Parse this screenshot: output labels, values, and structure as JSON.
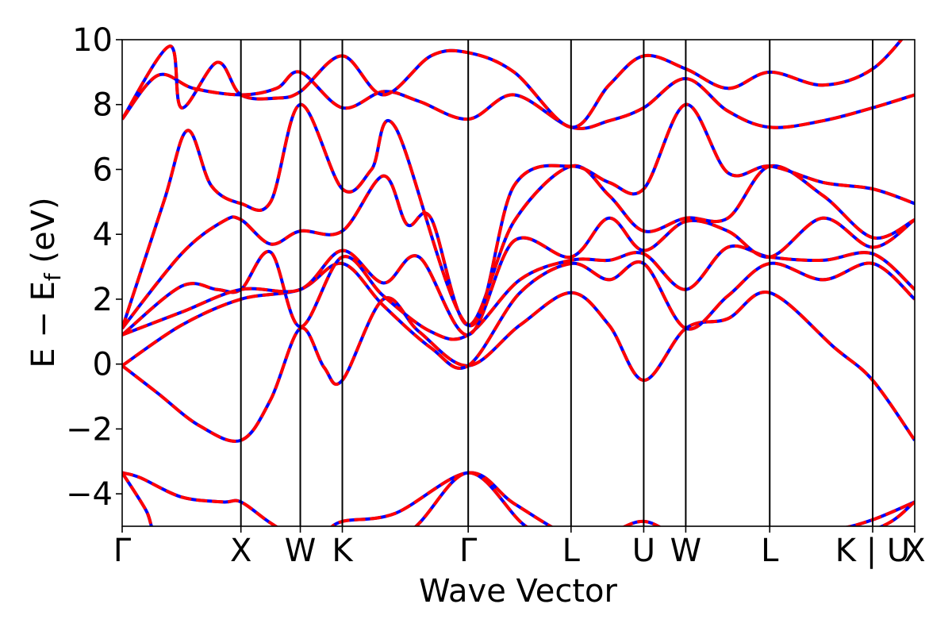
{
  "chart_data": {
    "type": "line",
    "title": "",
    "xlabel": "Wave Vector",
    "ylabel_parts": [
      "E − E",
      "f",
      " (eV)"
    ],
    "ylim": [
      -5,
      10
    ],
    "yticks": [
      "10",
      "8",
      "6",
      "4",
      "2",
      "0",
      "−2",
      "−4"
    ],
    "ytick_values": [
      10,
      8,
      6,
      4,
      2,
      0,
      -2,
      -4
    ],
    "kpath": [
      {
        "label": "Γ",
        "x": 0.0
      },
      {
        "label": "X",
        "x": 1.0
      },
      {
        "label": "W",
        "x": 1.5
      },
      {
        "label": "K",
        "x": 1.854
      },
      {
        "label": "Γ",
        "x": 2.914
      },
      {
        "label": "L",
        "x": 3.78
      },
      {
        "label": "U",
        "x": 4.392
      },
      {
        "label": "W",
        "x": 4.746
      },
      {
        "label": "L",
        "x": 5.453
      },
      {
        "label": "K | U",
        "x": 6.32
      },
      {
        "label": "X",
        "x": 6.674
      }
    ],
    "series_styles": [
      {
        "color": "#0000ff",
        "style": "solid"
      },
      {
        "color": "#ff0000",
        "style": "dashed"
      }
    ],
    "bands": [
      [
        [
          0,
          -3.35
        ],
        [
          0.15,
          -3.5
        ],
        [
          0.5,
          -4.1
        ],
        [
          0.85,
          -4.25
        ],
        [
          1.0,
          -4.25
        ],
        [
          1.25,
          -4.9
        ],
        [
          1.5,
          -5.4
        ],
        [
          1.7,
          -5.2
        ],
        [
          1.854,
          -4.85
        ],
        [
          2.3,
          -4.6
        ],
        [
          2.914,
          -3.35
        ],
        [
          3.3,
          -4.3
        ],
        [
          3.78,
          -5.3
        ],
        [
          4.1,
          -5.2
        ],
        [
          4.392,
          -4.85
        ],
        [
          4.746,
          -5.3
        ],
        [
          5.453,
          -5.3
        ],
        [
          6.0,
          -5.1
        ],
        [
          6.32,
          -4.8
        ],
        [
          6.674,
          -4.25
        ]
      ],
      [
        [
          0,
          -3.35
        ],
        [
          0.2,
          -4.5
        ],
        [
          0.3,
          -5.3
        ],
        [
          0.6,
          -5.4
        ],
        [
          1.0,
          -5.3
        ],
        [
          1.5,
          -5.5
        ],
        [
          1.854,
          -5.2
        ],
        [
          2.4,
          -5.2
        ],
        [
          2.914,
          -3.35
        ],
        [
          3.4,
          -5.0
        ],
        [
          3.78,
          -5.4
        ],
        [
          4.392,
          -5.1
        ],
        [
          4.746,
          -5.4
        ],
        [
          5.453,
          -5.4
        ],
        [
          6.32,
          -5.1
        ],
        [
          6.674,
          -4.25
        ]
      ],
      [
        [
          0,
          -0.05
        ],
        [
          0.3,
          -0.9
        ],
        [
          0.65,
          -1.9
        ],
        [
          1.0,
          -2.35
        ],
        [
          1.25,
          -1.1
        ],
        [
          1.5,
          1.1
        ],
        [
          1.7,
          -0.1
        ],
        [
          1.854,
          -0.5
        ],
        [
          2.2,
          2.0
        ],
        [
          2.5,
          1.0
        ],
        [
          2.914,
          -0.05
        ],
        [
          3.35,
          1.2
        ],
        [
          3.78,
          2.2
        ],
        [
          4.1,
          1.2
        ],
        [
          4.392,
          -0.5
        ],
        [
          4.746,
          1.1
        ],
        [
          5.1,
          1.4
        ],
        [
          5.453,
          2.2
        ],
        [
          6.0,
          0.5
        ],
        [
          6.32,
          -0.5
        ],
        [
          6.674,
          -2.35
        ]
      ],
      [
        [
          0,
          -0.05
        ],
        [
          0.5,
          1.2
        ],
        [
          1.0,
          2.0
        ],
        [
          1.5,
          2.3
        ],
        [
          1.854,
          3.1
        ],
        [
          2.2,
          1.8
        ],
        [
          2.6,
          0.5
        ],
        [
          2.914,
          -0.05
        ],
        [
          3.35,
          2.2
        ],
        [
          3.78,
          3.1
        ],
        [
          4.1,
          2.6
        ],
        [
          4.392,
          3.1
        ],
        [
          4.746,
          1.1
        ],
        [
          5.1,
          2.1
        ],
        [
          5.453,
          3.1
        ],
        [
          5.9,
          2.6
        ],
        [
          6.32,
          3.1
        ],
        [
          6.674,
          2.0
        ]
      ],
      [
        [
          0,
          0.9
        ],
        [
          0.5,
          2.4
        ],
        [
          0.8,
          2.3
        ],
        [
          1.0,
          2.3
        ],
        [
          1.25,
          3.45
        ],
        [
          1.5,
          1.15
        ],
        [
          1.854,
          3.3
        ],
        [
          2.2,
          2.1
        ],
        [
          2.6,
          1.0
        ],
        [
          2.914,
          0.9
        ],
        [
          3.35,
          2.6
        ],
        [
          3.78,
          3.2
        ],
        [
          4.1,
          3.2
        ],
        [
          4.392,
          3.4
        ],
        [
          4.746,
          2.3
        ],
        [
          5.1,
          3.6
        ],
        [
          5.453,
          3.3
        ],
        [
          5.9,
          3.2
        ],
        [
          6.32,
          3.4
        ],
        [
          6.674,
          2.3
        ]
      ],
      [
        [
          0,
          0.9
        ],
        [
          0.5,
          1.6
        ],
        [
          1.0,
          2.3
        ],
        [
          1.5,
          2.3
        ],
        [
          1.854,
          3.5
        ],
        [
          2.2,
          2.5
        ],
        [
          2.5,
          3.3
        ],
        [
          2.914,
          0.9
        ],
        [
          3.3,
          3.8
        ],
        [
          3.78,
          3.3
        ],
        [
          4.1,
          4.5
        ],
        [
          4.392,
          3.5
        ],
        [
          4.746,
          4.4
        ],
        [
          5.1,
          4.1
        ],
        [
          5.453,
          3.3
        ],
        [
          5.9,
          4.5
        ],
        [
          6.32,
          3.6
        ],
        [
          6.674,
          4.45
        ]
      ],
      [
        [
          0,
          1.1
        ],
        [
          0.5,
          3.4
        ],
        [
          0.85,
          4.4
        ],
        [
          1.0,
          4.45
        ],
        [
          1.25,
          3.7
        ],
        [
          1.5,
          4.1
        ],
        [
          1.854,
          4.1
        ],
        [
          2.2,
          5.8
        ],
        [
          2.4,
          4.3
        ],
        [
          2.6,
          4.5
        ],
        [
          2.914,
          1.2
        ],
        [
          3.3,
          4.4
        ],
        [
          3.78,
          6.1
        ],
        [
          4.1,
          5.2
        ],
        [
          4.392,
          4.1
        ],
        [
          4.746,
          4.5
        ],
        [
          5.1,
          4.5
        ],
        [
          5.453,
          6.1
        ],
        [
          5.9,
          5.2
        ],
        [
          6.32,
          3.9
        ],
        [
          6.674,
          4.45
        ]
      ],
      [
        [
          0,
          1.1
        ],
        [
          0.35,
          5.0
        ],
        [
          0.55,
          7.2
        ],
        [
          0.75,
          5.5
        ],
        [
          1.0,
          4.95
        ],
        [
          1.25,
          5.0
        ],
        [
          1.5,
          8.0
        ],
        [
          1.854,
          5.4
        ],
        [
          2.1,
          6.0
        ],
        [
          2.3,
          7.3
        ],
        [
          2.914,
          1.2
        ],
        [
          3.3,
          5.5
        ],
        [
          3.78,
          6.1
        ],
        [
          4.1,
          5.6
        ],
        [
          4.392,
          5.4
        ],
        [
          4.746,
          8.0
        ],
        [
          5.1,
          5.9
        ],
        [
          5.453,
          6.1
        ],
        [
          5.9,
          5.6
        ],
        [
          6.32,
          5.4
        ],
        [
          6.674,
          4.95
        ]
      ],
      [
        [
          0,
          7.55
        ],
        [
          0.3,
          8.9
        ],
        [
          0.6,
          8.5
        ],
        [
          1.0,
          8.3
        ],
        [
          1.3,
          8.5
        ],
        [
          1.5,
          9.0
        ],
        [
          1.854,
          7.9
        ],
        [
          2.2,
          8.4
        ],
        [
          2.5,
          8.1
        ],
        [
          2.914,
          7.55
        ],
        [
          3.3,
          8.3
        ],
        [
          3.78,
          7.3
        ],
        [
          4.1,
          7.5
        ],
        [
          4.392,
          7.9
        ],
        [
          4.746,
          8.8
        ],
        [
          5.1,
          7.8
        ],
        [
          5.453,
          7.3
        ],
        [
          5.9,
          7.5
        ],
        [
          6.32,
          7.9
        ],
        [
          6.674,
          8.3
        ]
      ],
      [
        [
          0,
          7.55
        ],
        [
          0.4,
          9.8
        ],
        [
          0.5,
          7.9
        ],
        [
          0.8,
          9.3
        ],
        [
          1.0,
          8.3
        ],
        [
          1.3,
          8.2
        ],
        [
          1.5,
          8.4
        ],
        [
          1.854,
          9.5
        ],
        [
          2.2,
          8.3
        ],
        [
          2.6,
          9.5
        ],
        [
          2.914,
          9.6
        ],
        [
          3.3,
          9.0
        ],
        [
          3.78,
          7.3
        ],
        [
          4.1,
          8.6
        ],
        [
          4.392,
          9.5
        ],
        [
          4.746,
          9.1
        ],
        [
          5.1,
          8.5
        ],
        [
          5.453,
          9.0
        ],
        [
          5.9,
          8.6
        ],
        [
          6.32,
          9.1
        ],
        [
          6.674,
          10.5
        ]
      ]
    ]
  }
}
